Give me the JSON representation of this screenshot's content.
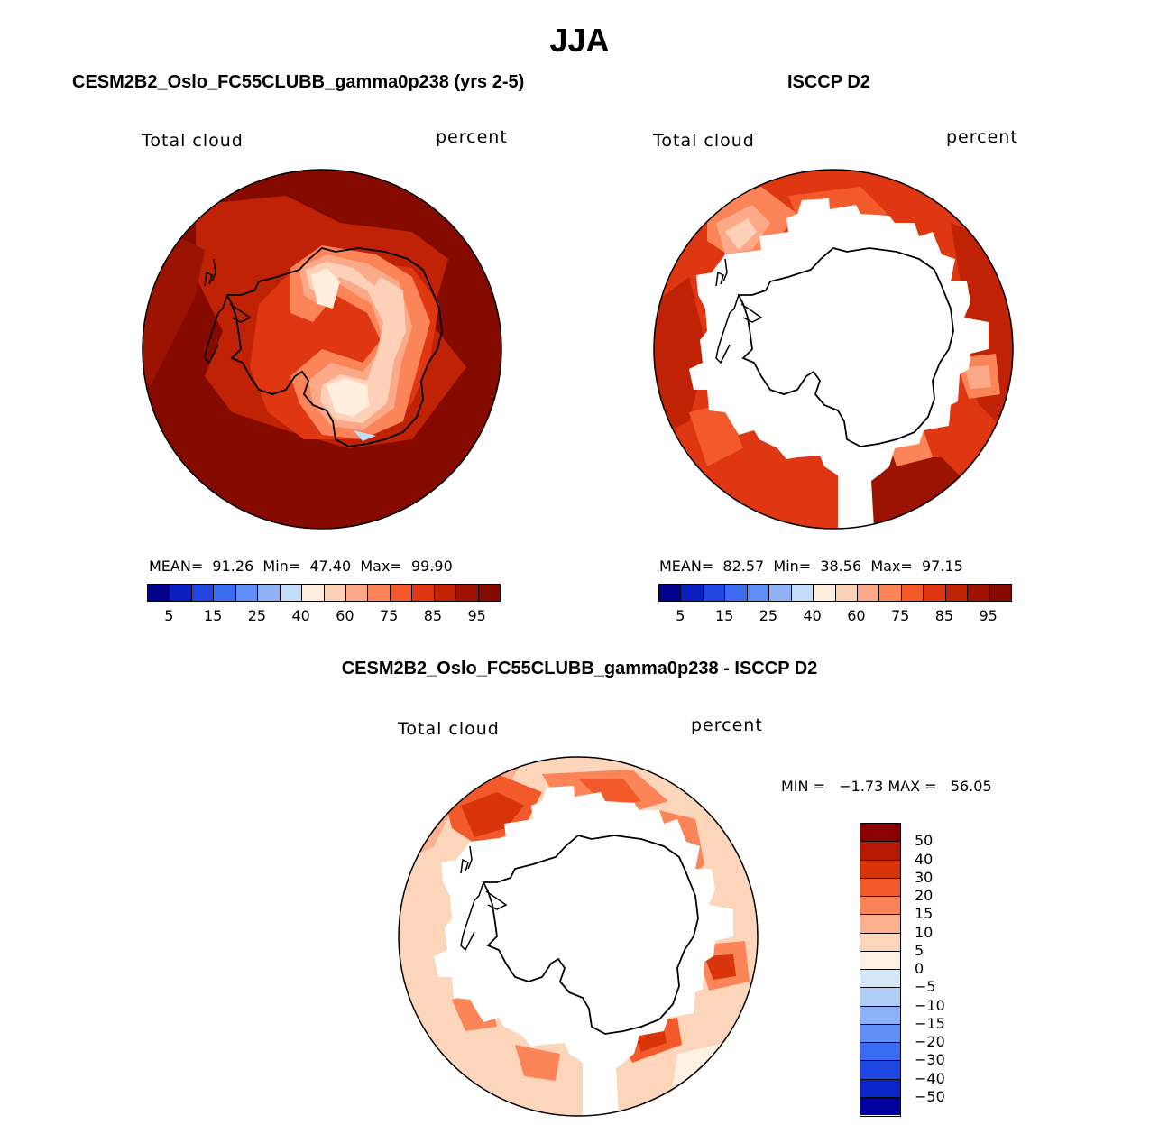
{
  "figure_title": "JJA",
  "panels": {
    "model": {
      "title": "CESM2B2_Oslo_FC55CLUBB_gamma0p238 (yrs 2-5)",
      "variable": "Total cloud",
      "units": "percent",
      "stats": "MEAN=  91.26  Min=  47.40  Max=  99.90"
    },
    "obs": {
      "title": "ISCCP D2",
      "variable": "Total cloud",
      "units": "percent",
      "stats": "MEAN=  82.57  Min=  38.56  Max=  97.15"
    },
    "diff": {
      "title": "CESM2B2_Oslo_FC55CLUBB_gamma0p238 - ISCCP D2",
      "variable": "Total cloud",
      "units": "percent",
      "stats": "MIN =   −1.73 MAX =   56.05"
    }
  },
  "chart_data": {
    "type": "map",
    "projection": "south polar stereographic",
    "season": "JJA",
    "field_colorbar": {
      "colors": [
        "#00008b",
        "#0a1fbf",
        "#1f46e0",
        "#3a6cf2",
        "#5f8ef5",
        "#8fb2f7",
        "#c4dbf9",
        "#ffeedd",
        "#fdd1b7",
        "#fca98a",
        "#fb8458",
        "#f25a2c",
        "#de3711",
        "#bf2205",
        "#9c1401",
        "#850b00"
      ],
      "tick_labels": [
        "5",
        "15",
        "25",
        "40",
        "60",
        "75",
        "85",
        "95"
      ]
    },
    "diff_colorbar": {
      "colors": [
        "#8b0000",
        "#b51a00",
        "#d9340a",
        "#f25a2c",
        "#fb8458",
        "#fcb18e",
        "#fdd5bb",
        "#fff1e2",
        "#d4e6fa",
        "#b0cdf7",
        "#8cb2f5",
        "#5f8ef5",
        "#3a6cf2",
        "#1f46e0",
        "#0a26c8",
        "#00009e"
      ],
      "tick_labels": [
        "50",
        "40",
        "30",
        "20",
        "15",
        "10",
        "5",
        "0",
        "−5",
        "−10",
        "−15",
        "−20",
        "−30",
        "−40",
        "−50"
      ]
    },
    "summary": [
      {
        "panel": "model",
        "mean": 91.26,
        "min": 47.4,
        "max": 99.9
      },
      {
        "panel": "obs",
        "mean": 82.57,
        "min": 38.56,
        "max": 97.15
      },
      {
        "panel": "diff",
        "min": -1.73,
        "max": 56.05
      }
    ]
  }
}
